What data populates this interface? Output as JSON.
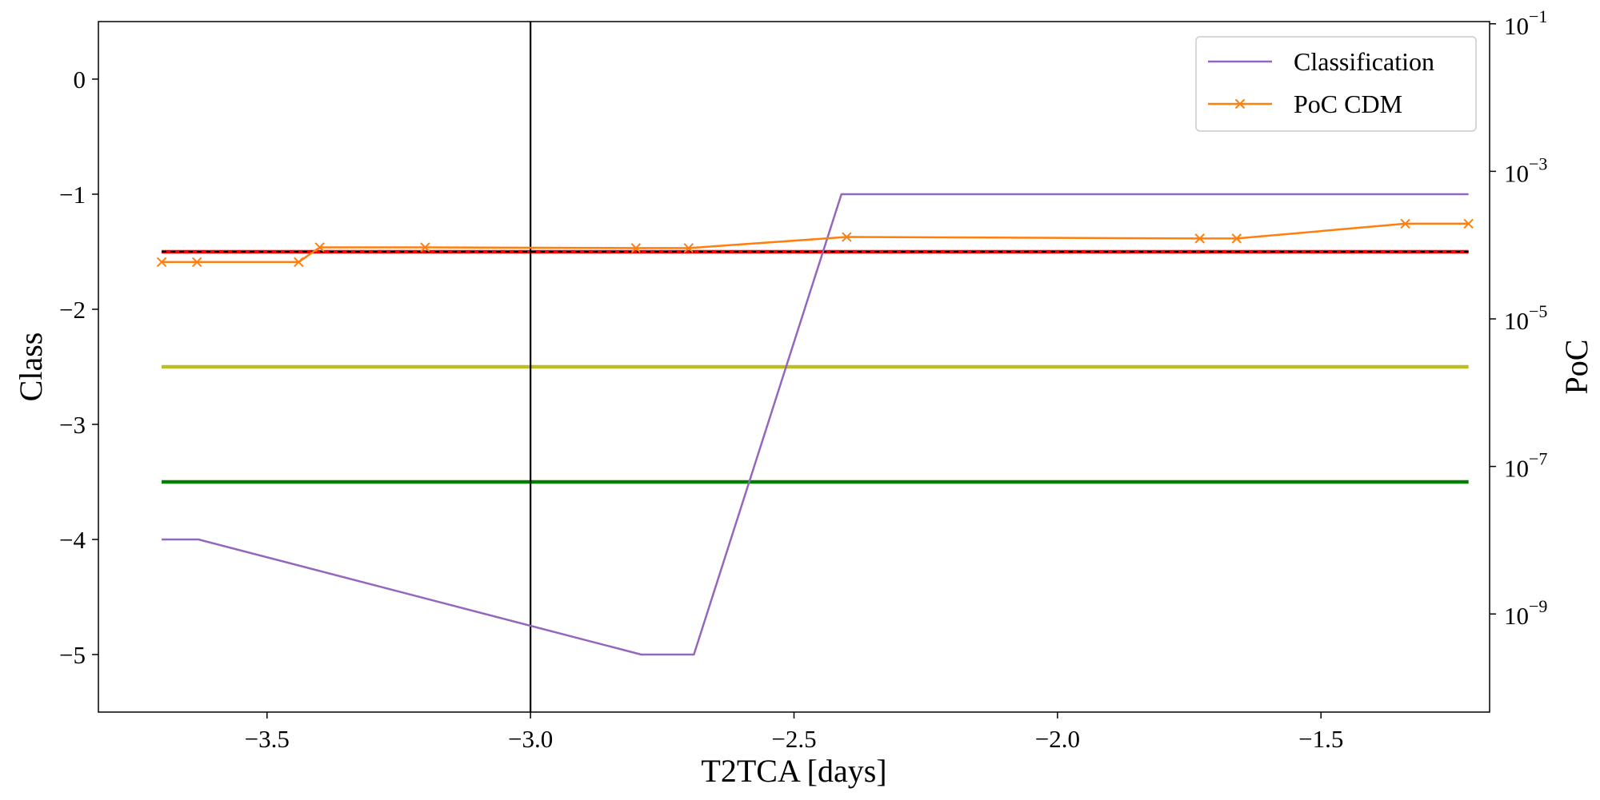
{
  "chart_data": {
    "type": "line",
    "xlabel": "T2TCA [days]",
    "ylabel": "Class",
    "y2label": "PoC",
    "xlim": [
      -3.82,
      -1.18
    ],
    "ylim": [
      -5.5,
      0.5
    ],
    "y2lim_log10": [
      -10.33,
      -0.97
    ],
    "y2scale": "log",
    "xticks": [
      -3.5,
      -3.0,
      -2.5,
      -2.0,
      -1.5
    ],
    "xtick_labels": [
      "−3.5",
      "−3.0",
      "−2.5",
      "−2.0",
      "−1.5"
    ],
    "yticks": [
      0,
      -1,
      -2,
      -3,
      -4,
      -5
    ],
    "ytick_labels": [
      "0",
      "−1",
      "−2",
      "−3",
      "−4",
      "−5"
    ],
    "y2ticks_log10": [
      -1,
      -3,
      -5,
      -7,
      -9
    ],
    "y2tick_labels": [
      {
        "base": "10",
        "exp": "−1"
      },
      {
        "base": "10",
        "exp": "−3"
      },
      {
        "base": "10",
        "exp": "−5"
      },
      {
        "base": "10",
        "exp": "−7"
      },
      {
        "base": "10",
        "exp": "−9"
      }
    ],
    "grid": false,
    "legend_position": "top-right",
    "vertical_line": {
      "x": -3.0,
      "color": "#000000"
    },
    "threshold_lines": [
      {
        "y": -1.5,
        "color": "#ff0000",
        "style": "solid"
      },
      {
        "y": -1.5,
        "color": "#000000",
        "style": "dashed"
      },
      {
        "y": -2.5,
        "color": "#bcbd22",
        "style": "solid"
      },
      {
        "y": -3.5,
        "color": "#008000",
        "style": "solid"
      }
    ],
    "threshold_x_range": [
      -3.7,
      -1.22
    ],
    "series": [
      {
        "name": "Classification",
        "axis": "left",
        "color": "#9467bd",
        "marker": "none",
        "x": [
          -3.7,
          -3.63,
          -2.79,
          -2.69,
          -2.41,
          -1.22
        ],
        "y": [
          -4,
          -4,
          -5,
          -5,
          -1,
          -1
        ]
      },
      {
        "name": "PoC CDM",
        "axis": "right",
        "color": "#ff7f0e",
        "marker": "x",
        "x": [
          -3.7,
          -3.633,
          -3.44,
          -3.4,
          -3.2,
          -2.8,
          -2.7,
          -2.4,
          -1.73,
          -1.66,
          -1.34,
          -1.22
        ],
        "y_log10": [
          -4.23,
          -4.23,
          -4.23,
          -4.03,
          -4.03,
          -4.04,
          -4.04,
          -3.89,
          -3.91,
          -3.91,
          -3.71,
          -3.71
        ],
        "y": [
          5.9e-05,
          5.9e-05,
          5.9e-05,
          9.3e-05,
          9.3e-05,
          9.1e-05,
          9.1e-05,
          0.000129,
          0.000123,
          0.000123,
          0.000195,
          0.000195
        ]
      }
    ]
  }
}
